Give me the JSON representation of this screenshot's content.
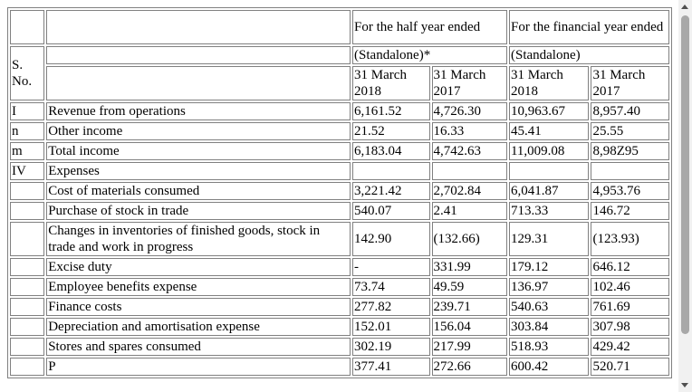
{
  "table": {
    "header": {
      "sno": "S.\nNo.",
      "half_year": "For the half year ended",
      "financial_year": "For the financial year ended",
      "standalone_half": "(Standalone)*",
      "standalone_fy": "(Standalone)",
      "date_2018": "31 March 2018",
      "date_2017": "31 March 2017"
    },
    "rows": [
      {
        "sno": "I",
        "label": "Revenue from operations",
        "v": [
          "6,161.52",
          "4,726.30",
          "10,963.67",
          "8,957.40"
        ]
      },
      {
        "sno": "n",
        "label": "Other income",
        "v": [
          "21.52",
          "16.33",
          "45.41",
          "25.55"
        ]
      },
      {
        "sno": "m",
        "label": "Total income",
        "v": [
          "6,183.04",
          "4,742.63",
          "11,009.08",
          "8,98Z95"
        ]
      },
      {
        "sno": "IV",
        "label": "Expenses",
        "v": [
          "",
          "",
          "",
          ""
        ]
      },
      {
        "sno": "",
        "label": "Cost of materials consumed",
        "v": [
          "3,221.42",
          "2,702.84",
          "6,041.87",
          "4,953.76"
        ]
      },
      {
        "sno": "",
        "label": "Purchase of stock in trade",
        "v": [
          "540.07",
          "2.41",
          "713.33",
          "146.72"
        ]
      },
      {
        "sno": "",
        "label": "Changes in inventories of finished goods, stock in trade and work in progress",
        "v": [
          "142.90",
          "(132.66)",
          "129.31",
          "(123.93)"
        ]
      },
      {
        "sno": "",
        "label": "Excise duty",
        "v": [
          "-",
          "331.99",
          "179.12",
          "646.12"
        ]
      },
      {
        "sno": "",
        "label": "Employee benefits expense",
        "v": [
          "73.74",
          "49.59",
          "136.97",
          "102.46"
        ]
      },
      {
        "sno": "",
        "label": "Finance costs",
        "v": [
          "277.82",
          "239.71",
          "540.63",
          "761.69"
        ]
      },
      {
        "sno": "",
        "label": "Depreciation and amortisation expense",
        "v": [
          "152.01",
          "156.04",
          "303.84",
          "307.98"
        ]
      },
      {
        "sno": "",
        "label": "Stores and spares consumed",
        "v": [
          "302.19",
          "217.99",
          "518.93",
          "429.42"
        ]
      },
      {
        "sno": "",
        "label": "P",
        "v": [
          "377.41",
          "272.66",
          "600.42",
          "520.71"
        ]
      }
    ]
  }
}
